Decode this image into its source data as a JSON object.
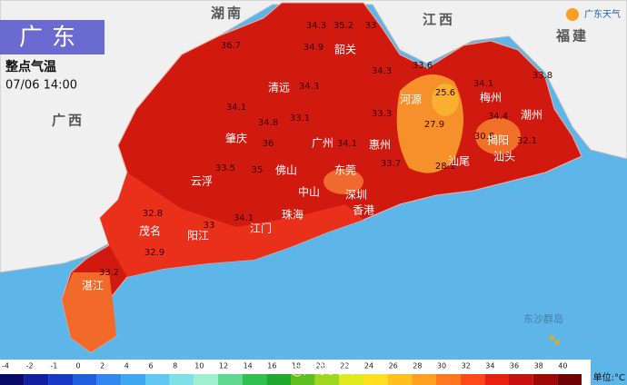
{
  "header": {
    "title": "广东",
    "subtitle": "整点气温",
    "time": "07/06 14:00"
  },
  "logo": "广东天气",
  "neighbors": [
    "湖南",
    "江西",
    "福建",
    "广西"
  ],
  "cities": [
    "清远",
    "韶关",
    "河源",
    "梅州",
    "潮州",
    "肇庆",
    "广州",
    "惠州",
    "汕头",
    "云浮",
    "佛山",
    "中山",
    "深圳",
    "江门",
    "珠海",
    "香港",
    "茂名",
    "阳江",
    "湛江",
    "揭阳",
    "汕尾",
    "东莞"
  ],
  "temperatures": [
    34.3,
    35.2,
    33,
    36.7,
    34.9,
    34.3,
    34.1,
    33.1,
    34.3,
    33.6,
    25.6,
    27.9,
    33.3,
    34.1,
    33.8,
    34.4,
    30.8,
    32.1,
    28.1,
    34.1,
    36,
    35,
    33.5,
    32.8,
    33,
    32.9,
    33.2,
    34.1,
    33.7,
    34.8
  ],
  "islands": "东沙群岛",
  "legend": {
    "ticks": [
      -4,
      -2,
      -1,
      0,
      2,
      4,
      6,
      8,
      10,
      12,
      14,
      16,
      18,
      20,
      22,
      24,
      26,
      28,
      30,
      32,
      34,
      36,
      38,
      40
    ],
    "unit": "单位:°C"
  },
  "watermark": "@广东天气"
}
